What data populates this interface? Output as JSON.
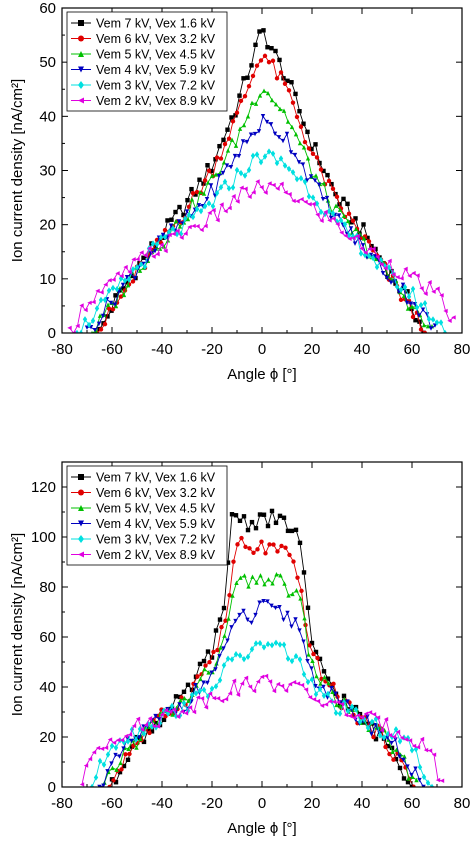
{
  "chart_data": [
    {
      "type": "line",
      "xlabel": "Angle ϕ [°]",
      "ylabel": "Ion current density [nA/cm²]",
      "xlim": [
        -80,
        80
      ],
      "ylim": [
        0,
        60
      ],
      "xticks": [
        "-80",
        "-60",
        "-40",
        "-20",
        "0",
        "20",
        "40",
        "60",
        "80"
      ],
      "yticks": [
        "0",
        "10",
        "20",
        "30",
        "40",
        "50",
        "60"
      ],
      "legend_position": "top-left",
      "series": [
        {
          "name": "Vem 7 kV, Vex 1.6 kV",
          "color": "#000000",
          "marker": "square",
          "x": [
            -65,
            -60,
            -50,
            -40,
            -30,
            -20,
            -10,
            0,
            10,
            20,
            30,
            40,
            50,
            60,
            65
          ],
          "y": [
            0,
            5,
            12,
            18,
            24,
            31,
            42,
            56,
            47,
            35,
            25,
            19,
            12,
            5,
            0
          ]
        },
        {
          "name": "Vem 6 kV, Vex 3.2 kV",
          "color": "#e00000",
          "marker": "circle",
          "x": [
            -66,
            -60,
            -50,
            -40,
            -30,
            -20,
            -10,
            0,
            10,
            20,
            30,
            40,
            50,
            60,
            66
          ],
          "y": [
            0,
            4,
            11,
            17,
            23,
            30,
            40,
            52,
            45,
            33,
            24,
            18,
            11,
            4,
            0
          ]
        },
        {
          "name": "Vem 5 kV, Vex 4.5 kV",
          "color": "#00c000",
          "marker": "triangle-up",
          "x": [
            -68,
            -60,
            -50,
            -40,
            -30,
            -20,
            -10,
            0,
            10,
            20,
            30,
            40,
            50,
            60,
            68
          ],
          "y": [
            0,
            5,
            12,
            17,
            22,
            28,
            36,
            46,
            40,
            30,
            22,
            17,
            11,
            5,
            0
          ]
        },
        {
          "name": "Vem 4 kV, Vex 5.9 kV",
          "color": "#0000c0",
          "marker": "triangle-down",
          "x": [
            -70,
            -60,
            -50,
            -40,
            -30,
            -20,
            -10,
            0,
            10,
            20,
            30,
            40,
            50,
            60,
            70
          ],
          "y": [
            0,
            6,
            12,
            17,
            21,
            26,
            33,
            39,
            36,
            28,
            21,
            16,
            11,
            6,
            0
          ]
        },
        {
          "name": "Vem 3 kV, Vex 7.2 kV",
          "color": "#00e0e0",
          "marker": "diamond",
          "x": [
            -74,
            -60,
            -50,
            -40,
            -30,
            -20,
            -10,
            0,
            10,
            20,
            30,
            40,
            50,
            60,
            74
          ],
          "y": [
            0,
            7,
            12,
            17,
            20,
            24,
            29,
            33,
            31,
            26,
            20,
            16,
            11,
            7,
            0
          ]
        },
        {
          "name": "Vem 2 kV, Vex 8.9 kV",
          "color": "#e000e0",
          "marker": "triangle-left",
          "x": [
            -77,
            -70,
            -60,
            -50,
            -40,
            -30,
            -20,
            -10,
            0,
            10,
            20,
            30,
            40,
            50,
            60,
            70,
            77
          ],
          "y": [
            0,
            6,
            9,
            13,
            16,
            19,
            21,
            25,
            27,
            26,
            23,
            20,
            16,
            13,
            10,
            7,
            2
          ]
        }
      ]
    },
    {
      "type": "line",
      "xlabel": "Angle ϕ [°]",
      "ylabel": "Ion current density [nA/cm²]",
      "xlim": [
        -80,
        80
      ],
      "ylim": [
        0,
        130
      ],
      "xticks": [
        "-80",
        "-60",
        "-40",
        "-20",
        "0",
        "20",
        "40",
        "60",
        "80"
      ],
      "yticks": [
        "0",
        "20",
        "40",
        "60",
        "80",
        "100",
        "120"
      ],
      "legend_position": "top-left",
      "series": [
        {
          "name": "Vem 7 kV, Vex 1.6 kV",
          "color": "#000000",
          "marker": "square",
          "x": [
            -60,
            -55,
            -50,
            -40,
            -30,
            -20,
            -15,
            -12,
            -5,
            0,
            5,
            10,
            15,
            20,
            30,
            40,
            50,
            55,
            60
          ],
          "y": [
            0,
            12,
            18,
            28,
            37,
            55,
            70,
            110,
            105,
            108,
            107,
            105,
            100,
            55,
            37,
            27,
            18,
            10,
            0
          ]
        },
        {
          "name": "Vem 6 kV, Vex 3.2 kV",
          "color": "#e00000",
          "marker": "circle",
          "x": [
            -61,
            -55,
            -50,
            -40,
            -30,
            -20,
            -15,
            -10,
            -5,
            0,
            5,
            10,
            15,
            20,
            30,
            40,
            50,
            55,
            61
          ],
          "y": [
            0,
            12,
            18,
            28,
            36,
            52,
            64,
            98,
            94,
            96,
            95,
            93,
            82,
            52,
            36,
            27,
            18,
            10,
            0
          ]
        },
        {
          "name": "Vem 5 kV, Vex 4.5 kV",
          "color": "#00c000",
          "marker": "triangle-up",
          "x": [
            -63,
            -55,
            -50,
            -40,
            -30,
            -20,
            -15,
            -10,
            -5,
            0,
            5,
            10,
            15,
            20,
            30,
            40,
            50,
            55,
            63
          ],
          "y": [
            0,
            14,
            19,
            28,
            35,
            48,
            58,
            84,
            80,
            84,
            83,
            80,
            76,
            48,
            35,
            27,
            19,
            12,
            0
          ]
        },
        {
          "name": "Vem 4 kV, Vex 5.9 kV",
          "color": "#0000c0",
          "marker": "triangle-down",
          "x": [
            -65,
            -55,
            -50,
            -40,
            -30,
            -20,
            -15,
            -10,
            -5,
            0,
            5,
            10,
            15,
            20,
            30,
            40,
            50,
            55,
            65
          ],
          "y": [
            0,
            15,
            20,
            28,
            34,
            45,
            53,
            70,
            66,
            72,
            70,
            68,
            64,
            45,
            34,
            27,
            20,
            14,
            0
          ]
        },
        {
          "name": "Vem 3 kV, Vex 7.2 kV",
          "color": "#00e0e0",
          "marker": "diamond",
          "x": [
            -68,
            -60,
            -50,
            -40,
            -30,
            -20,
            -15,
            -10,
            -5,
            0,
            5,
            10,
            15,
            20,
            30,
            40,
            50,
            60,
            68
          ],
          "y": [
            0,
            18,
            22,
            28,
            33,
            40,
            46,
            54,
            52,
            58,
            56,
            54,
            50,
            40,
            32,
            27,
            22,
            16,
            0
          ]
        },
        {
          "name": "Vem 2 kV, Vex 8.9 kV",
          "color": "#e000e0",
          "marker": "triangle-left",
          "x": [
            -72,
            -68,
            -60,
            -50,
            -40,
            -30,
            -20,
            -10,
            0,
            10,
            20,
            30,
            40,
            50,
            60,
            68,
            72
          ],
          "y": [
            0,
            14,
            20,
            24,
            28,
            32,
            36,
            40,
            42,
            41,
            36,
            32,
            28,
            24,
            20,
            14,
            0
          ]
        }
      ]
    }
  ]
}
